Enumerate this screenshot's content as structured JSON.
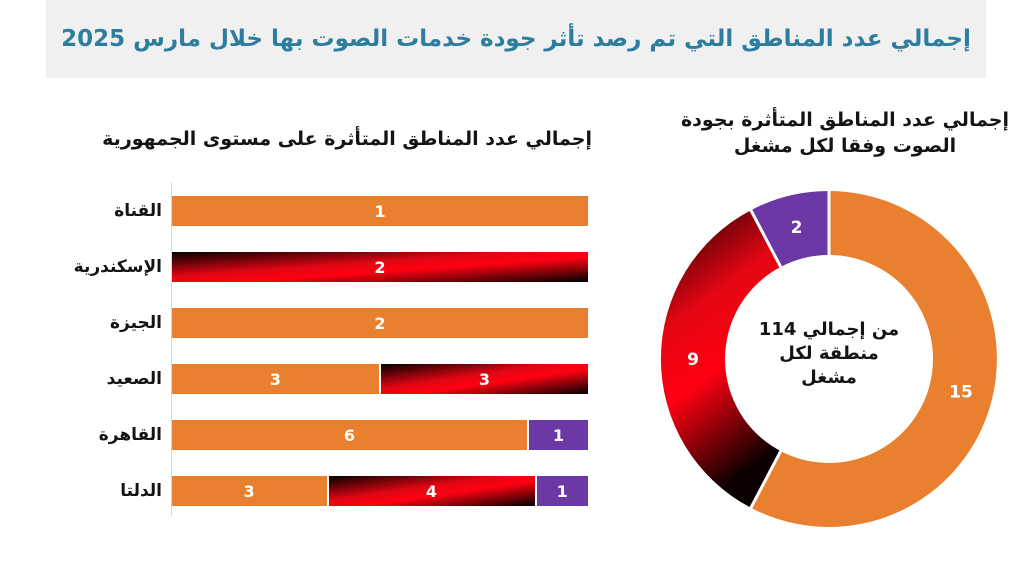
{
  "header": {
    "title": "إجمالي عدد المناطق التي تم رصد تأثر جودة خدمات الصوت بها خلال مارس 2025"
  },
  "colors": {
    "orange": "#E8802F",
    "red_bright": "#FF0011",
    "red_dark": "#0D0000",
    "purple": "#6C38A6",
    "title_teal": "#2C7D9E",
    "banner_bg": "#F1F0F0",
    "axis_gray": "#D8D8D8"
  },
  "chart_data": [
    {
      "type": "bar",
      "variant": "horizontal-100-stacked",
      "title": "إجمالي عدد المناطق المتأثرة على مستوى الجمهورية",
      "categories": [
        "القناة",
        "الإسكندرية",
        "الجيزة",
        "الصعيد",
        "القاهرة",
        "الدلتا"
      ],
      "series": [
        {
          "name": "operator-orange",
          "color": "orange",
          "values": [
            1,
            0,
            2,
            3,
            6,
            3
          ]
        },
        {
          "name": "operator-red",
          "color": "red",
          "values": [
            0,
            2,
            0,
            3,
            0,
            4
          ]
        },
        {
          "name": "operator-purple",
          "color": "purple",
          "values": [
            0,
            0,
            0,
            0,
            1,
            1
          ]
        }
      ],
      "value_labels_shown": true,
      "legend": "none",
      "grid": "off"
    },
    {
      "type": "pie",
      "variant": "donut",
      "title": "إجمالي عدد المناطق المتأثرة بجودة\nالصوت وفقا لكل مشغل",
      "center_text": "من إجمالي 114\nمنطقة لكل\nمشغل",
      "center_total": 114,
      "start_angle_deg": 0,
      "direction": "clockwise",
      "slices": [
        {
          "name": "operator-orange",
          "color": "orange",
          "value": 15
        },
        {
          "name": "operator-red",
          "color": "red",
          "value": 9
        },
        {
          "name": "operator-purple",
          "color": "purple",
          "value": 2
        }
      ],
      "legend": "none"
    }
  ]
}
